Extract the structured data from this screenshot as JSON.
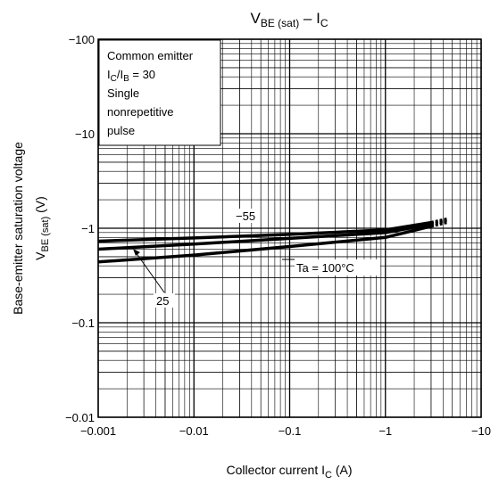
{
  "chart_data": {
    "type": "line",
    "title": {
      "main": "V",
      "sub1": "BE (sat)",
      "mid": " – I",
      "sub2": "C"
    },
    "xlabel": {
      "pre": "Collector current   I",
      "sub": "C",
      "post": "   (A)"
    },
    "ylabel": {
      "line1": "Base-emitter saturation voltage",
      "line2_pre": "V",
      "line2_sub": "BE (sat)",
      "line2_post": "    (V)"
    },
    "x_scale": "log",
    "y_scale": "log",
    "xlim": [
      -0.001,
      -10
    ],
    "ylim": [
      -0.01,
      -100
    ],
    "x_ticks": [
      "−0.001",
      "−0.01",
      "−0.1",
      "−1",
      "−10"
    ],
    "y_ticks": [
      "−0.01",
      "−0.1",
      "−1",
      "−10",
      "−100"
    ],
    "grid": true,
    "conditions": {
      "line1": "Common emitter",
      "line2_pre": "I",
      "line2_sub1": "C",
      "line2_mid": "/I",
      "line2_sub2": "B",
      "line2_post": " = 30",
      "line3": "Single",
      "line4": "nonrepetitive",
      "line5": "pulse"
    },
    "series": [
      {
        "name": "−55",
        "x": [
          -0.001,
          -0.01,
          -0.1,
          -1,
          -3
        ],
        "y": [
          -0.73,
          -0.79,
          -0.86,
          -0.96,
          -1.15
        ]
      },
      {
        "name": "25",
        "x": [
          -0.001,
          -0.01,
          -0.1,
          -1,
          -3
        ],
        "y": [
          -0.6,
          -0.68,
          -0.78,
          -0.9,
          -1.1
        ]
      },
      {
        "name": "Ta = 100°C",
        "x": [
          -0.001,
          -0.01,
          -0.1,
          -1,
          -3
        ],
        "y": [
          -0.44,
          -0.52,
          -0.64,
          -0.8,
          -1.05
        ]
      }
    ],
    "labels": {
      "s55": "−55",
      "s25": "25",
      "s100": "Ta = 100°C"
    }
  }
}
